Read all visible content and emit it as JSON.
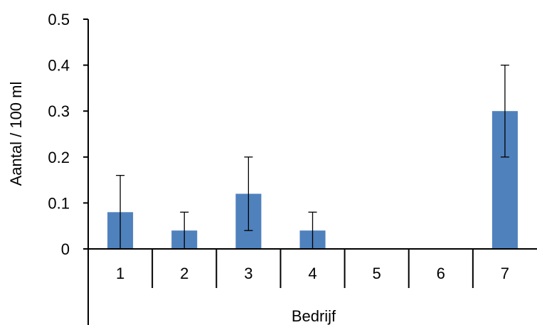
{
  "chart_data": {
    "type": "bar",
    "categories": [
      "1",
      "2",
      "3",
      "4",
      "5",
      "6",
      "7"
    ],
    "values": [
      0.08,
      0.04,
      0.12,
      0.04,
      0,
      0,
      0.3
    ],
    "error_upper": [
      0.16,
      0.08,
      0.2,
      0.08,
      null,
      null,
      0.4
    ],
    "error_lower": [
      0,
      0,
      0.04,
      0,
      null,
      null,
      0.2
    ],
    "ylim": [
      0,
      0.5
    ],
    "yticks": [
      "0",
      "0.1",
      "0.2",
      "0.3",
      "0.4",
      "0.5"
    ],
    "xlabel": "Bedrijf",
    "ylabel": "Aantal / 100 ml",
    "title": "",
    "grid": false,
    "colors": {
      "bar": "#4f81bd",
      "axis": "#000000",
      "error": "#000000"
    }
  }
}
